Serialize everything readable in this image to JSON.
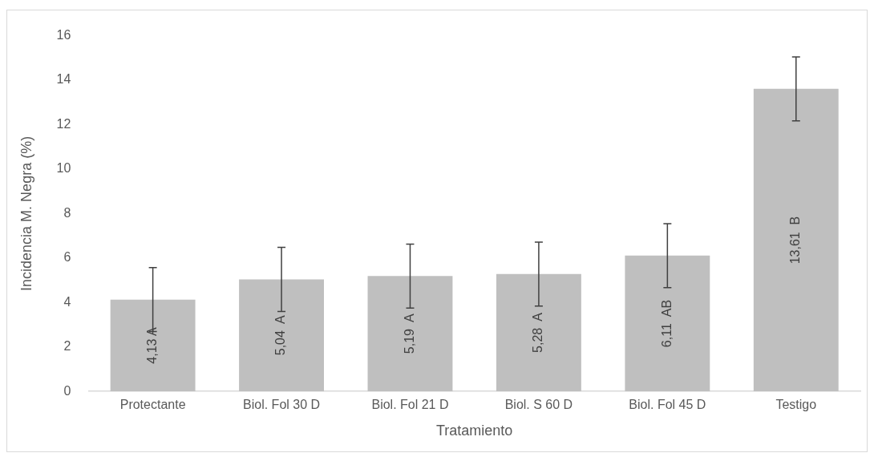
{
  "chart_data": {
    "type": "bar",
    "xlabel": "Tratamiento",
    "ylabel": "Incidencia M. Negra (%)",
    "categories": [
      "Protectante",
      "Biol. Fol 30 D",
      "Biol. Fol 21 D",
      "Biol. S 60 D",
      "Biol. Fol 45 D",
      "Testigo"
    ],
    "values": [
      4.13,
      5.04,
      5.19,
      5.28,
      6.11,
      13.61
    ],
    "errors": [
      1.44,
      1.44,
      1.44,
      1.44,
      1.44,
      1.44
    ],
    "value_labels": [
      "4,13 A",
      "5,04  A",
      "5,19  A",
      "5,28  A",
      "6,11  AB",
      "13,61  B"
    ],
    "color": "#bfbfbf",
    "ylim": [
      0,
      16
    ],
    "yticks": [
      0,
      2,
      4,
      6,
      8,
      10,
      12,
      14,
      16
    ],
    "grid": false
  }
}
